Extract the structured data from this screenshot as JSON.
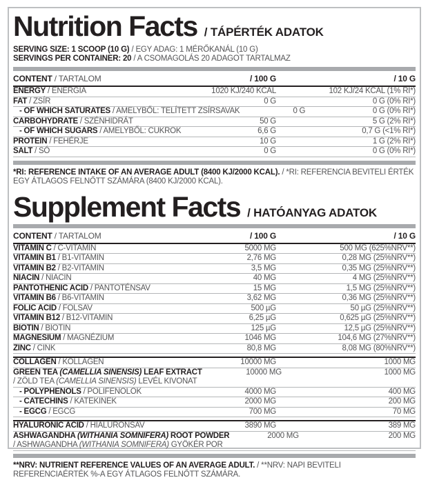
{
  "accent_colors": {
    "text_primary": "#231f20",
    "text_secondary": "#545456",
    "divider_bar": "#a8aaad",
    "border": "#bdbfc1"
  },
  "nutrition": {
    "title": "Nutrition Facts",
    "subtitle": "/ TÁPÉRTÉK ADATOK",
    "serving_line1": {
      "bold": "SERVING SIZE: 1 SCOOP (10 G)",
      "rest": " / EGY ADAG: 1 MÉRŐKANÁL (10 G)"
    },
    "serving_line2": {
      "bold": "SERVINGS PER CONTAINER: 20",
      "rest": " / A CSOMAGOLÁS 20 ADAGOT TARTALMAZ"
    },
    "table": {
      "header": {
        "name_bold": "CONTENT",
        "name_rest": " / TARTALOM",
        "col100": "/ 100 G",
        "col10": "/ 10 G"
      },
      "rows": [
        {
          "name": [
            {
              "t": "ENERGY",
              "b": true
            },
            {
              "t": " / ENERGIA"
            }
          ],
          "v100": "1020 KJ/240 KCAL",
          "v10": "102 KJ/24 KCAL (1% RI*)"
        },
        {
          "name": [
            {
              "t": "FAT",
              "b": true
            },
            {
              "t": " / ZSÍR"
            }
          ],
          "v100": "0 G",
          "v10": "0 G (0% RI*)"
        },
        {
          "indent": true,
          "name": [
            {
              "t": "- OF WHICH SATURATES",
              "b": true
            },
            {
              "t": " /  AMELYBŐL: TELÍTETT ZSÍRSAVAK"
            }
          ],
          "v100": "0 G",
          "v10": "0 G (0% RI*)"
        },
        {
          "name": [
            {
              "t": "CARBOHYDRATE",
              "b": true
            },
            {
              "t": " / SZÉNHIDRÁT"
            }
          ],
          "v100": "50 G",
          "v10": "5 G (2% RI*)"
        },
        {
          "indent": true,
          "name": [
            {
              "t": "- OF WHICH SUGARS",
              "b": true
            },
            {
              "t": " / AMELYBŐL: CUKROK"
            }
          ],
          "v100": "6,6 G",
          "v10": "0,7 G (<1% RI*)"
        },
        {
          "name": [
            {
              "t": "PROTEIN",
              "b": true
            },
            {
              "t": " / FEHÉRJE"
            }
          ],
          "v100": "10 G",
          "v10": "1 G (2% RI*)"
        },
        {
          "name": [
            {
              "t": "SALT",
              "b": true
            },
            {
              "t": " / SÓ"
            }
          ],
          "v100": "0 G",
          "v10": "0 G (0% RI*)"
        }
      ]
    },
    "footnote": {
      "bold": "*RI: REFERENCE INTAKE OF AN AVERAGE ADULT (8400 KJ/2000 KCAL).",
      "rest": " / *RI: REFERENCIA BEVITELI ÉRTÉK EGY ÁTLAGOS FELNŐTT SZÁMÁRA (8400 KJ/2000 KCAL)."
    }
  },
  "supplement": {
    "title": "Supplement Facts",
    "subtitle": "/ HATÓANYAG ADATOK",
    "table": {
      "header": {
        "name_bold": "CONTENT",
        "name_rest": " / TARTALOM",
        "col100": "/ 100 G",
        "col10": "/ 10 G"
      },
      "rows": [
        {
          "name": [
            {
              "t": "VITAMIN C",
              "b": true
            },
            {
              "t": " / C-VITAMIN"
            }
          ],
          "v100": "5000 MG",
          "v10": "500 MG (625%NRV**)"
        },
        {
          "name": [
            {
              "t": "VITAMIN B1",
              "b": true
            },
            {
              "t": " / B1-VITAMIN"
            }
          ],
          "v100": "2,76 MG",
          "v10": "0,28 MG (25%NRV**)"
        },
        {
          "name": [
            {
              "t": "VITAMIN B2",
              "b": true
            },
            {
              "t": " / B2-VITAMIN"
            }
          ],
          "v100": "3,5 MG",
          "v10": "0,35 MG (25%NRV**)"
        },
        {
          "name": [
            {
              "t": "NIACIN",
              "b": true
            },
            {
              "t": " / NIACIN"
            }
          ],
          "v100": "40 MG",
          "v10": "4 MG (25%NRV**)"
        },
        {
          "name": [
            {
              "t": "PANTOTHENIC ACID",
              "b": true
            },
            {
              "t": " / PANTOTÉNSAV"
            }
          ],
          "v100": "15 MG",
          "v10": "1,5 MG (25%NRV**)"
        },
        {
          "name": [
            {
              "t": "VITAMIN B6",
              "b": true
            },
            {
              "t": " / B6-VITAMIN"
            }
          ],
          "v100": "3,62 MG",
          "v10": "0,36 MG (25%NRV**)"
        },
        {
          "name": [
            {
              "t": "FOLIC ACID",
              "b": true
            },
            {
              "t": " / FOLSAV"
            }
          ],
          "v100": "500 µG",
          "v10": "50 µG (25%NRV**)"
        },
        {
          "name": [
            {
              "t": "VITAMIN B12",
              "b": true
            },
            {
              "t": " / B12-VITAMIN"
            }
          ],
          "v100": "6,25 µG",
          "v10": "0,625 µG (25%NRV**)"
        },
        {
          "name": [
            {
              "t": "BIOTIN",
              "b": true
            },
            {
              "t": " / BIOTIN"
            }
          ],
          "v100": "125 µG",
          "v10": "12,5 µG (25%NRV**)"
        },
        {
          "name": [
            {
              "t": "MAGNESIUM",
              "b": true
            },
            {
              "t": " / MAGNÉZIUM"
            }
          ],
          "v100": "1046 MG",
          "v10": "104,6 MG (27%NRV**)"
        },
        {
          "name": [
            {
              "t": "ZINC",
              "b": true
            },
            {
              "t": " / CINK"
            }
          ],
          "v100": "80,8 MG",
          "v10": "8,08 MG (80%NRV**)"
        },
        {
          "divider": true,
          "name": [
            {
              "t": "COLLAGEN",
              "b": true
            },
            {
              "t": " / KOLLAGÉN"
            }
          ],
          "v100": "10000 MG",
          "v10": "1000 MG"
        },
        {
          "name": [
            {
              "t": "GREEN TEA ",
              "b": true
            },
            {
              "t": "(CAMELLIA SINENSIS)",
              "b": true,
              "i": true
            },
            {
              "t": " LEAF EXTRACT",
              "b": true
            }
          ],
          "name2": [
            {
              "t": "/ ZÖLD TEA "
            },
            {
              "t": "(CAMELLIA SINENSIS)",
              "i": true
            },
            {
              "t": " LEVÉL KIVONAT"
            }
          ],
          "v100": "10000 MG",
          "v10": "1000 MG"
        },
        {
          "indent": true,
          "name": [
            {
              "t": "- POLYPHENOLS",
              "b": true
            },
            {
              "t": " / POLIFENOLOK"
            }
          ],
          "v100": "4000 MG",
          "v10": "400 MG"
        },
        {
          "indent": true,
          "name": [
            {
              "t": "- CATECHINS",
              "b": true
            },
            {
              "t": " / KATEKINEK"
            }
          ],
          "v100": "2000 MG",
          "v10": "200 MG"
        },
        {
          "indent": true,
          "name": [
            {
              "t": "- EGCG",
              "b": true
            },
            {
              "t": " / EGCG"
            }
          ],
          "v100": "700 MG",
          "v10": "70 MG"
        },
        {
          "divider": true,
          "name": [
            {
              "t": "HYALURONIC ACID",
              "b": true
            },
            {
              "t": " / HIALURONSAV"
            }
          ],
          "v100": "3890 MG",
          "v10": "389 MG"
        },
        {
          "name": [
            {
              "t": "ASHWAGANDHA ",
              "b": true
            },
            {
              "t": "(WITHANIA SOMNIFERA)",
              "b": true,
              "i": true
            },
            {
              "t": " ROOT POWDER",
              "b": true
            }
          ],
          "name2": [
            {
              "t": "/ ASHWAGANDHA "
            },
            {
              "t": "(WITHANIA SOMNIFERA)",
              "i": true
            },
            {
              "t": " GYÖKÉR POR"
            }
          ],
          "v100": "2000 MG",
          "v10": "200 MG"
        }
      ]
    },
    "footnote": {
      "bold": "**NRV: NUTRIENT REFERENCE VALUES OF AN AVERAGE ADULT.",
      "rest": " / **NRV: NAPI BEVITELI REFERENCIAÉRTÉK %-A EGY ÁTLAGOS FELNŐTT SZÁMÁRA."
    }
  }
}
